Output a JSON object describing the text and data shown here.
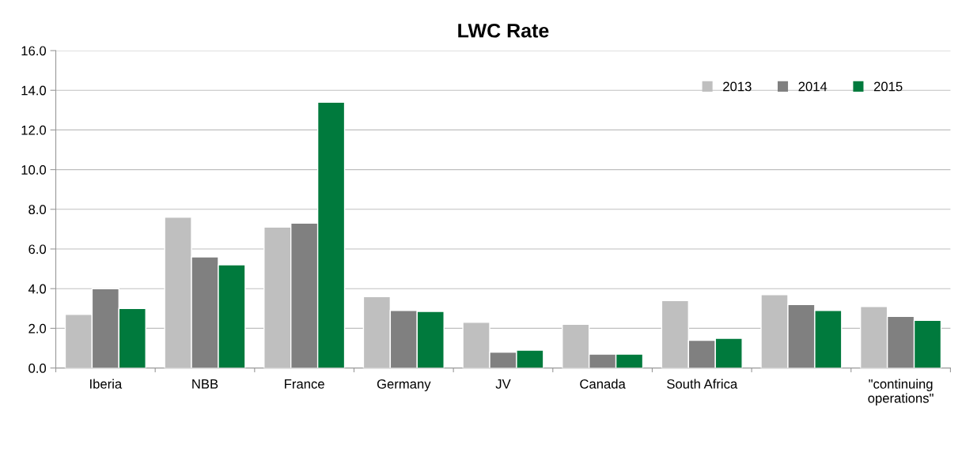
{
  "chart_data": {
    "type": "bar",
    "title": "LWC Rate",
    "categories": [
      "Iberia",
      "NBB",
      "France",
      "Germany",
      "JV",
      "Canada",
      "South Africa",
      null,
      "\"continuing\noperations\""
    ],
    "series": [
      {
        "name": "2013",
        "color": "#bfbfbf",
        "values": [
          2.7,
          7.6,
          7.1,
          3.6,
          2.3,
          2.2,
          3.4,
          3.7,
          3.1
        ]
      },
      {
        "name": "2014",
        "color": "#808080",
        "values": [
          4.0,
          5.6,
          7.3,
          2.9,
          0.8,
          0.7,
          1.4,
          3.2,
          2.6
        ]
      },
      {
        "name": "2015",
        "color": "#007a3d",
        "values": [
          3.0,
          5.2,
          13.4,
          2.85,
          0.9,
          0.7,
          1.5,
          2.9,
          2.4
        ]
      }
    ],
    "ylim": [
      0,
      16
    ],
    "yticks": [
      {
        "value": 0,
        "label": "0.0"
      },
      {
        "value": 2,
        "label": "2.0"
      },
      {
        "value": 4,
        "label": "4.0"
      },
      {
        "value": 6,
        "label": "6.0"
      },
      {
        "value": 8,
        "label": "8.0"
      },
      {
        "value": 10,
        "label": "10.0"
      },
      {
        "value": 12,
        "label": "12.0"
      },
      {
        "value": 14,
        "label": "14.0"
      },
      {
        "value": 16,
        "label": "16.0"
      }
    ],
    "grid": "y",
    "legend": "top right"
  }
}
